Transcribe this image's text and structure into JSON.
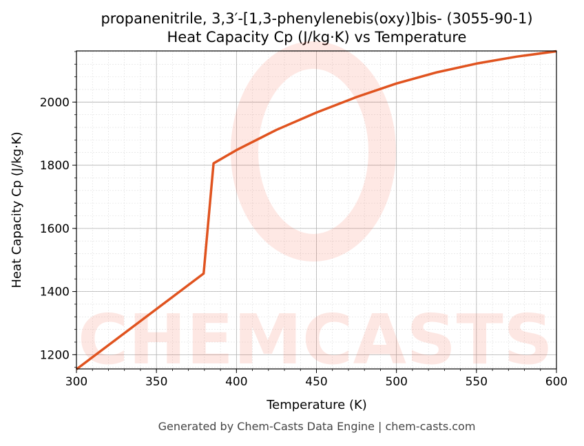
{
  "chart_data": {
    "type": "line",
    "title": "propanenitrile, 3,3′-[1,3-phenylenebis(oxy)]bis- (3055-90-1)",
    "subtitle": "Heat Capacity Cp (J/kg·K) vs Temperature",
    "xlabel": "Temperature (K)",
    "ylabel": "Heat Capacity Cp (J/kg·K)",
    "xlim": [
      300,
      600
    ],
    "ylim": [
      1155,
      2162
    ],
    "xticks": [
      300,
      350,
      400,
      450,
      500,
      550,
      600
    ],
    "yticks": [
      1200,
      1400,
      1600,
      1800,
      2000
    ],
    "grid": true,
    "series": [
      {
        "color": "#e0531f",
        "x": [
          300,
          379.5,
          385.7,
          400,
          425,
          450,
          475,
          500,
          525,
          550,
          575,
          600
        ],
        "y": [
          1154,
          1457,
          1806,
          1848,
          1912,
          1967,
          2016,
          2059,
          2094,
          2122,
          2144,
          2161
        ]
      }
    ],
    "watermark": "CHEMCASTS",
    "footer": "Generated by Chem-Casts Data Engine | chem-casts.com"
  }
}
